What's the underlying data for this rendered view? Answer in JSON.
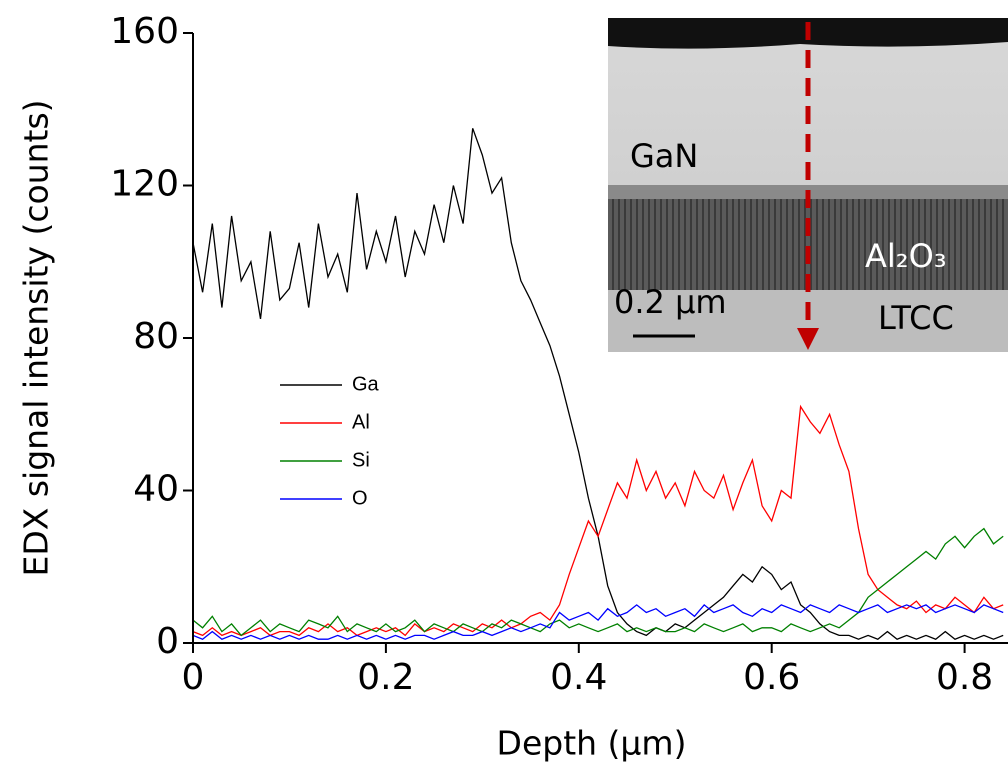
{
  "chart_data": {
    "type": "line",
    "xlabel": "Depth (μm)",
    "ylabel": "EDX signal intensity (counts)",
    "xlim": [
      0,
      0.845
    ],
    "ylim": [
      0,
      160
    ],
    "xticks": [
      0,
      0.2,
      0.4,
      0.6,
      0.8
    ],
    "yticks": [
      0,
      40,
      80,
      120,
      160
    ],
    "legend": "center-left",
    "x": [
      0,
      0.01,
      0.02,
      0.03,
      0.04,
      0.05,
      0.06,
      0.07,
      0.08,
      0.09,
      0.1,
      0.11,
      0.12,
      0.13,
      0.14,
      0.15,
      0.16,
      0.17,
      0.18,
      0.19,
      0.2,
      0.21,
      0.22,
      0.23,
      0.24,
      0.25,
      0.26,
      0.27,
      0.28,
      0.29,
      0.3,
      0.31,
      0.32,
      0.33,
      0.34,
      0.35,
      0.36,
      0.37,
      0.38,
      0.39,
      0.4,
      0.41,
      0.42,
      0.43,
      0.44,
      0.45,
      0.46,
      0.47,
      0.48,
      0.49,
      0.5,
      0.51,
      0.52,
      0.53,
      0.54,
      0.55,
      0.56,
      0.57,
      0.58,
      0.59,
      0.6,
      0.61,
      0.62,
      0.63,
      0.64,
      0.65,
      0.66,
      0.67,
      0.68,
      0.69,
      0.7,
      0.71,
      0.72,
      0.73,
      0.74,
      0.75,
      0.76,
      0.77,
      0.78,
      0.79,
      0.8,
      0.81,
      0.82,
      0.83,
      0.84
    ],
    "series": [
      {
        "name": "Ga",
        "color": "#000000",
        "values": [
          105,
          92,
          110,
          88,
          112,
          95,
          100,
          85,
          108,
          90,
          93,
          105,
          88,
          110,
          96,
          102,
          92,
          118,
          98,
          108,
          100,
          112,
          96,
          108,
          102,
          115,
          105,
          120,
          110,
          135,
          128,
          118,
          122,
          105,
          95,
          90,
          84,
          78,
          70,
          60,
          50,
          38,
          28,
          15,
          8,
          5,
          3,
          2,
          4,
          3,
          5,
          4,
          6,
          8,
          10,
          12,
          15,
          18,
          16,
          20,
          18,
          14,
          16,
          10,
          8,
          5,
          3,
          2,
          2,
          1,
          2,
          1,
          3,
          1,
          2,
          1,
          2,
          1,
          3,
          1,
          2,
          1,
          2,
          1,
          2
        ]
      },
      {
        "name": "Al",
        "color": "#ff0000",
        "values": [
          3,
          2,
          4,
          2,
          3,
          2,
          3,
          4,
          2,
          3,
          3,
          2,
          4,
          3,
          5,
          3,
          4,
          2,
          3,
          4,
          3,
          4,
          2,
          5,
          3,
          4,
          3,
          5,
          4,
          3,
          5,
          4,
          6,
          4,
          5,
          7,
          8,
          6,
          10,
          18,
          25,
          32,
          28,
          35,
          42,
          38,
          48,
          40,
          45,
          38,
          42,
          36,
          45,
          40,
          38,
          44,
          35,
          42,
          48,
          36,
          32,
          40,
          38,
          62,
          58,
          55,
          60,
          52,
          45,
          30,
          18,
          14,
          12,
          10,
          9,
          11,
          8,
          10,
          9,
          12,
          10,
          8,
          12,
          9,
          10
        ]
      },
      {
        "name": "Si",
        "color": "#008000",
        "values": [
          6,
          4,
          7,
          3,
          5,
          2,
          4,
          6,
          3,
          5,
          4,
          3,
          6,
          5,
          4,
          7,
          3,
          5,
          4,
          3,
          5,
          3,
          4,
          6,
          3,
          5,
          4,
          3,
          5,
          4,
          3,
          5,
          4,
          6,
          5,
          4,
          3,
          5,
          6,
          4,
          5,
          4,
          3,
          4,
          5,
          3,
          4,
          3,
          4,
          3,
          3,
          4,
          3,
          5,
          4,
          3,
          4,
          5,
          3,
          4,
          4,
          3,
          5,
          4,
          3,
          4,
          5,
          4,
          6,
          8,
          12,
          14,
          16,
          18,
          20,
          22,
          24,
          22,
          26,
          28,
          25,
          28,
          30,
          26,
          28
        ]
      },
      {
        "name": "O",
        "color": "#0000ff",
        "values": [
          2,
          1,
          3,
          1,
          2,
          1,
          2,
          1,
          2,
          1,
          2,
          1,
          2,
          1,
          1,
          2,
          1,
          2,
          1,
          2,
          1,
          2,
          1,
          2,
          2,
          1,
          2,
          3,
          2,
          2,
          3,
          2,
          3,
          4,
          3,
          4,
          5,
          4,
          8,
          6,
          7,
          8,
          6,
          9,
          7,
          8,
          10,
          8,
          9,
          7,
          8,
          9,
          7,
          10,
          8,
          9,
          10,
          8,
          7,
          9,
          8,
          10,
          9,
          8,
          10,
          9,
          8,
          10,
          9,
          8,
          9,
          10,
          8,
          9,
          10,
          9,
          10,
          8,
          9,
          10,
          9,
          8,
          10,
          9,
          8
        ]
      }
    ],
    "inset": {
      "layers": [
        "GaN",
        "Al₂O₃",
        "LTCC"
      ],
      "scale_bar": "0.2 μm"
    }
  }
}
